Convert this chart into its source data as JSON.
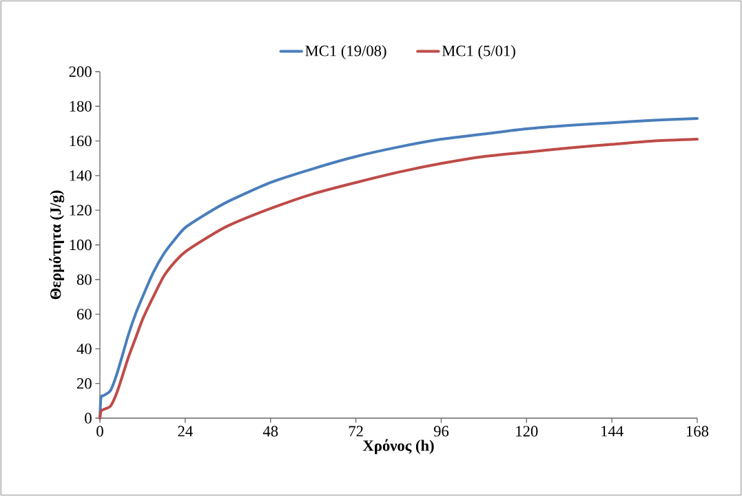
{
  "chart_data": {
    "type": "line",
    "xlabel": "Χρόνος (h)",
    "ylabel": "Θερμότητα (J/g)",
    "xlim": [
      0,
      168
    ],
    "ylim": [
      0,
      200
    ],
    "xticks": [
      0,
      24,
      48,
      72,
      96,
      120,
      144,
      168
    ],
    "yticks": [
      0,
      20,
      40,
      60,
      80,
      100,
      120,
      140,
      160,
      180,
      200
    ],
    "grid": false,
    "legend": "top",
    "marker": "none",
    "line_style": "solid",
    "series": [
      {
        "name": "MC1 (19/08)",
        "color": "#4a7ebb",
        "x": [
          0,
          0.3,
          1,
          3,
          5,
          8,
          10,
          12,
          15,
          18,
          21,
          24,
          30,
          36,
          48,
          60,
          72,
          84,
          96,
          108,
          120,
          132,
          144,
          156,
          168
        ],
        "values": [
          0,
          12,
          13,
          16,
          27,
          48,
          60,
          70,
          84,
          95,
          103,
          110,
          118,
          125,
          136,
          144,
          151,
          156.5,
          161,
          164,
          167,
          169,
          170.5,
          172,
          173
        ]
      },
      {
        "name": "MC1 (5/01)",
        "color": "#be4b48",
        "x": [
          0,
          0.3,
          1,
          3,
          5,
          8,
          10,
          12,
          15,
          18,
          21,
          24,
          30,
          36,
          48,
          60,
          72,
          84,
          96,
          108,
          120,
          132,
          144,
          156,
          168
        ],
        "values": [
          0,
          4,
          5,
          7,
          16,
          35,
          46,
          57,
          70,
          82,
          90,
          96,
          104,
          111,
          121,
          129.5,
          136,
          142,
          147,
          151,
          153.5,
          156,
          158,
          160,
          161
        ]
      }
    ]
  }
}
